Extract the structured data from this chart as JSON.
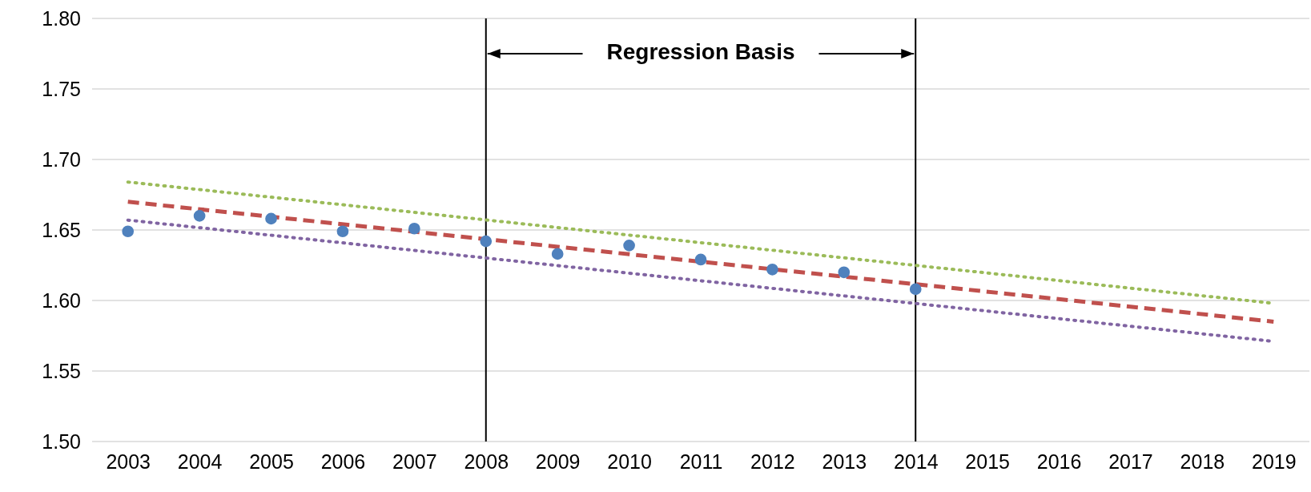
{
  "chart_data": {
    "type": "scatter",
    "xlim": [
      2002.5,
      2019.5
    ],
    "xticks": [
      2003,
      2004,
      2005,
      2006,
      2007,
      2008,
      2009,
      2010,
      2011,
      2012,
      2013,
      2014,
      2015,
      2016,
      2017,
      2018,
      2019
    ],
    "ylim": [
      1.5,
      1.8
    ],
    "yticks": [
      {
        "value": 1.5,
        "label": "1.50"
      },
      {
        "value": 1.55,
        "label": "1.55"
      },
      {
        "value": 1.6,
        "label": "1.60"
      },
      {
        "value": 1.65,
        "label": "1.65"
      },
      {
        "value": 1.7,
        "label": "1.70"
      },
      {
        "value": 1.75,
        "label": "1.75"
      },
      {
        "value": 1.8,
        "label": "1.80"
      }
    ],
    "grid": "y",
    "series": [
      {
        "type": "scatter",
        "marker": "circle",
        "color": "#4f81bd",
        "x": [
          2003,
          2004,
          2005,
          2006,
          2007,
          2008,
          2009,
          2010,
          2011,
          2012,
          2013,
          2014
        ],
        "values": [
          1.649,
          1.66,
          1.658,
          1.649,
          1.651,
          1.642,
          1.633,
          1.639,
          1.629,
          1.622,
          1.62,
          1.608
        ]
      },
      {
        "type": "line",
        "color": "#9bbb59",
        "line_style": "dotted",
        "x": [
          2003,
          2019
        ],
        "values": [
          1.684,
          1.598
        ]
      },
      {
        "type": "line",
        "color": "#c0504d",
        "line_style": "dashed",
        "x": [
          2003,
          2019
        ],
        "values": [
          1.67,
          1.585
        ]
      },
      {
        "type": "line",
        "color": "#8064a2",
        "line_style": "dotted",
        "x": [
          2003,
          2019
        ],
        "values": [
          1.657,
          1.571
        ]
      }
    ],
    "ref_lines": [
      {
        "axis": "x",
        "value": 2008,
        "color": "#000000"
      },
      {
        "axis": "x",
        "value": 2014,
        "color": "#000000"
      }
    ],
    "annotations": [
      {
        "text": "Regression Basis",
        "x": 2008,
        "y": 1.775
      }
    ]
  }
}
